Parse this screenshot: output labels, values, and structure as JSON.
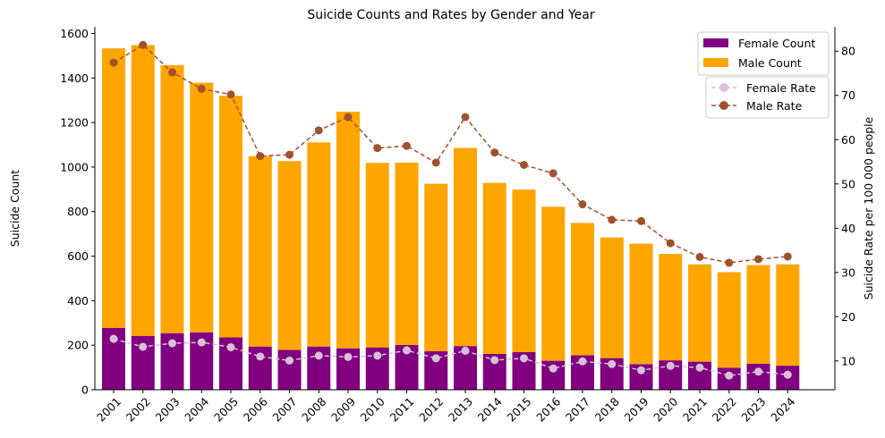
{
  "chart_data": {
    "type": "bar",
    "title": "Suicide Counts and Rates by Gender and Year",
    "ylabel_left": "Suicide Count",
    "ylabel_right": "Suicide Rate per 100 000 people",
    "categories": [
      "2001",
      "2002",
      "2003",
      "2004",
      "2005",
      "2006",
      "2007",
      "2008",
      "2009",
      "2010",
      "2011",
      "2012",
      "2013",
      "2014",
      "2015",
      "2016",
      "2017",
      "2018",
      "2019",
      "2020",
      "2021",
      "2022",
      "2023",
      "2024"
    ],
    "ylim_left": [
      0,
      1630
    ],
    "ylim_right": [
      3.5,
      85.5
    ],
    "yticks_left": [
      "0",
      "200",
      "400",
      "600",
      "800",
      "1000",
      "1200",
      "1400",
      "1600"
    ],
    "yticks_right": [
      "10",
      "20",
      "30",
      "40",
      "50",
      "60",
      "70",
      "80"
    ],
    "bar_series": [
      {
        "name": "Female Count",
        "color": "#800080",
        "values": [
          278,
          242,
          254,
          258,
          235,
          194,
          179,
          194,
          186,
          190,
          201,
          173,
          196,
          161,
          169,
          130,
          155,
          142,
          115,
          132,
          126,
          99,
          117,
          108
        ]
      },
      {
        "name": "Male Count",
        "color": "#FFA500",
        "values": [
          1255,
          1306,
          1204,
          1121,
          1085,
          855,
          848,
          917,
          1063,
          829,
          819,
          752,
          890,
          768,
          730,
          692,
          594,
          542,
          541,
          478,
          437,
          429,
          443,
          455
        ]
      }
    ],
    "line_series": [
      {
        "name": "Female Rate",
        "color": "#D8BFD8",
        "values": [
          15.0,
          13.2,
          14.0,
          14.2,
          13.1,
          11.0,
          10.1,
          11.2,
          10.9,
          11.2,
          12.4,
          10.6,
          12.3,
          10.2,
          10.6,
          8.3,
          9.9,
          9.3,
          7.9,
          8.9,
          8.5,
          6.7,
          7.6,
          6.9
        ]
      },
      {
        "name": "Male Rate",
        "color": "#A0522D",
        "values": [
          77.4,
          81.4,
          75.2,
          71.5,
          70.2,
          56.3,
          56.6,
          62.1,
          65.1,
          58.1,
          58.6,
          54.8,
          65.1,
          57.1,
          54.3,
          52.4,
          45.4,
          41.9,
          41.6,
          36.6,
          33.5,
          32.2,
          33.0,
          33.6
        ]
      }
    ],
    "legend_bars_placement": "top-right",
    "legend_lines_placement": "right",
    "grid": false
  }
}
